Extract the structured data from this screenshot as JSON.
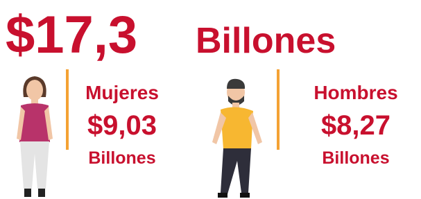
{
  "headline": {
    "amount": "$17,3",
    "unit": "Billones"
  },
  "groups": [
    {
      "label": "Mujeres",
      "amount": "$9,03",
      "unit": "Billones"
    },
    {
      "label": "Hombres",
      "amount": "$8,27",
      "unit": "Billones"
    }
  ]
}
